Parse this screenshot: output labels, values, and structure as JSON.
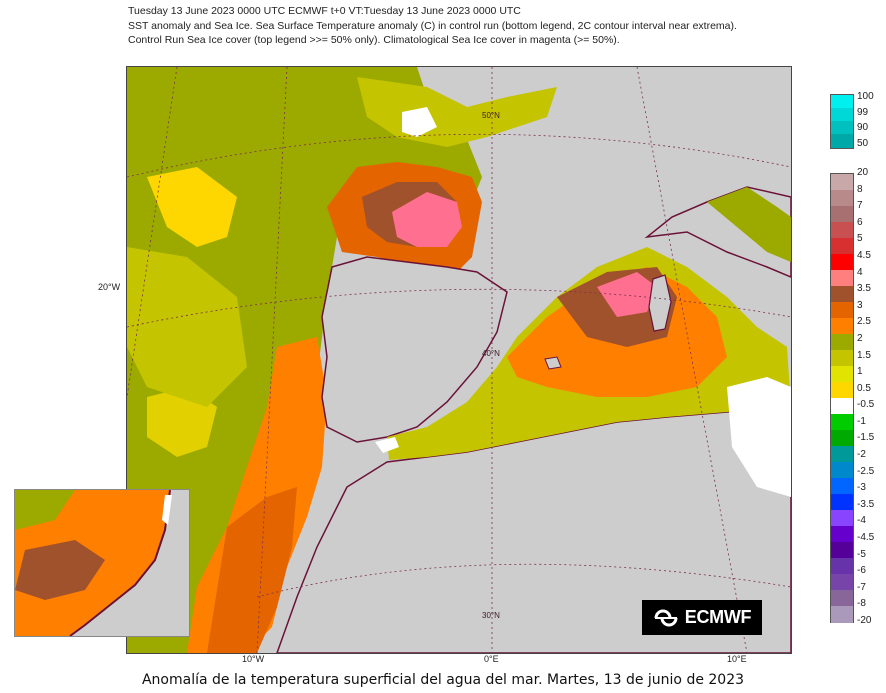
{
  "header": {
    "line1": "Tuesday 13 June 2023 0000 UTC  ECMWF  t+0  VT:Tuesday 13 June 2023 0000 UTC",
    "line2": "SST anomaly and Sea Ice. Sea Surface Temperature anomaly (C) in control run (bottom legend, 2C contour interval near extrema).",
    "line3": "Control Run Sea Ice cover (top legend >>= 50% only). Climatological Sea Ice cover in magenta (>= 50%)."
  },
  "map": {
    "lat_labels": [
      "50°N",
      "40°N",
      "30°N"
    ],
    "lon_labels": [
      "20°W",
      "10°W",
      "0°E",
      "10°E"
    ],
    "colors": {
      "land": "#cdcdcd",
      "coast": "#6b1238",
      "graticule": "#7a3050",
      "anom_0_0.5": "#ffd700",
      "anom_0.5_1": "#e3d000",
      "anom_1_1.5": "#c4c400",
      "anom_1.5_2": "#9caa00",
      "anom_2_2.5": "#ff7f00",
      "anom_2.5_3": "#e46400",
      "anom_3_3.5": "#a0522d",
      "anom_3.5_4": "#ff6f8f",
      "anom_neg": "#ffffff"
    }
  },
  "legend_top": {
    "labels": [
      "100",
      "99",
      "90",
      "50"
    ],
    "colors": [
      "#00f0f0",
      "#00d8d8",
      "#00c0c0",
      "#00a8a8"
    ]
  },
  "legend_bottom": {
    "labels": [
      "20",
      "8",
      "7",
      "6",
      "5",
      "4.5",
      "4",
      "3.5",
      "3",
      "2.5",
      "2",
      "1.5",
      "1",
      "0.5",
      "-0.5",
      "-1",
      "-1.5",
      "-2",
      "-2.5",
      "-3",
      "-3.5",
      "-4",
      "-4.5",
      "-5",
      "-6",
      "-7",
      "-8",
      "-20"
    ],
    "colors": [
      "#c8a8a8",
      "#b88a8a",
      "#a87070",
      "#c85050",
      "#d83030",
      "#ff0000",
      "#ff7f7f",
      "#a0522d",
      "#e46400",
      "#ff7f00",
      "#9caa00",
      "#c4c400",
      "#e3e300",
      "#ffd700",
      "#ffffff",
      "#00cc00",
      "#00aa00",
      "#009999",
      "#0088cc",
      "#0066ff",
      "#0033ff",
      "#8844ff",
      "#6600cc",
      "#550099",
      "#6633aa",
      "#7744aa",
      "#886699",
      "#aa99bb"
    ]
  },
  "logo": {
    "text": "ECMWF"
  },
  "caption": "Anomalía de la temperatura superficial del agua del mar. Martes, 13 de junio de 2023"
}
